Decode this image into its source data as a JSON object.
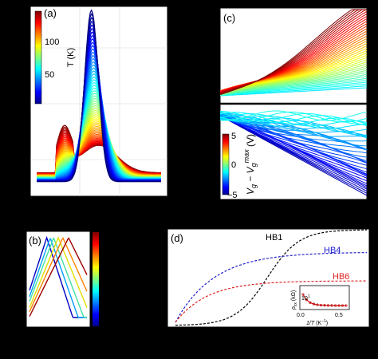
{
  "chart_data": [
    {
      "panel": "a",
      "type": "line",
      "title": "",
      "xlabel": "",
      "ylabel": "",
      "colorbar": {
        "label": "T (K)",
        "ticks": [
          "50",
          "100"
        ],
        "range": [
          10,
          150
        ],
        "colormap": "jet"
      },
      "series": [
        {
          "T": 10,
          "color": "#00008f",
          "peak_x": 0.42,
          "peak_y": 1.0,
          "width": 0.07
        },
        {
          "T": 30,
          "color": "#0040ff",
          "peak_x": 0.43,
          "peak_y": 0.88,
          "width": 0.08
        },
        {
          "T": 50,
          "color": "#00c0ff",
          "peak_x": 0.44,
          "peak_y": 0.7,
          "width": 0.09
        },
        {
          "T": 70,
          "color": "#40ff80",
          "peak_x": 0.45,
          "peak_y": 0.55,
          "width": 0.1
        },
        {
          "T": 90,
          "color": "#c0ff00",
          "peak_x": 0.46,
          "peak_y": 0.42,
          "width": 0.11
        },
        {
          "T": 110,
          "color": "#ffc000",
          "peak_x": 0.47,
          "peak_y": 0.32,
          "width": 0.12
        },
        {
          "T": 130,
          "color": "#ff4000",
          "peak_x": 0.48,
          "peak_y": 0.24,
          "width": 0.13
        },
        {
          "T": 150,
          "color": "#8f0000",
          "peak_x": 0.49,
          "peak_y": 0.18,
          "width": 0.14
        }
      ]
    },
    {
      "panel": "b",
      "type": "line",
      "title": "",
      "series": [
        {
          "color": "#0000c0",
          "peak_x": 0.3
        },
        {
          "color": "#00a0ff",
          "peak_x": 0.36
        },
        {
          "color": "#40e0a0",
          "peak_x": 0.42
        },
        {
          "color": "#e0e000",
          "peak_x": 0.5
        },
        {
          "color": "#ff8000",
          "peak_x": 0.58
        },
        {
          "color": "#a00000",
          "peak_x": 0.68
        }
      ]
    },
    {
      "panel": "c",
      "type": "line",
      "title": "",
      "colorbar": {
        "label": "V_g − V_g^max (V)",
        "ticks": [
          "5",
          "0",
          "−5"
        ],
        "range": [
          -5,
          5
        ],
        "colormap": "jet"
      }
    },
    {
      "panel": "d",
      "type": "line",
      "title": "",
      "series": [
        {
          "name": "HB1",
          "color": "#000000"
        },
        {
          "name": "HB4",
          "color": "#2020d0"
        },
        {
          "name": "HB6",
          "color": "#e02020"
        }
      ],
      "inset": {
        "type": "scatter",
        "xlabel": "1/T (K⁻¹)",
        "ylabel": "ρxx (kΩ)",
        "xticks": [
          "0.0",
          "0.5"
        ],
        "yticks": [
          "10¹"
        ],
        "color": "#c00000"
      }
    }
  ],
  "panels": {
    "a": {
      "label": "(a)"
    },
    "b": {
      "label": "(b)"
    },
    "c": {
      "label": "(c)"
    },
    "d": {
      "label": "(d)"
    }
  },
  "text": {
    "a_cbar_label": "T (K)",
    "a_cbar_tick_100": "100",
    "a_cbar_tick_50": "50",
    "c_cbar_tick_5": "5",
    "c_cbar_tick_0": "0",
    "c_cbar_tick_m5": "−5",
    "hb1": "HB1",
    "hb4": "HB4",
    "hb6": "HB6",
    "inset_tick_x0": "0.0",
    "inset_tick_x1": "0.5"
  }
}
